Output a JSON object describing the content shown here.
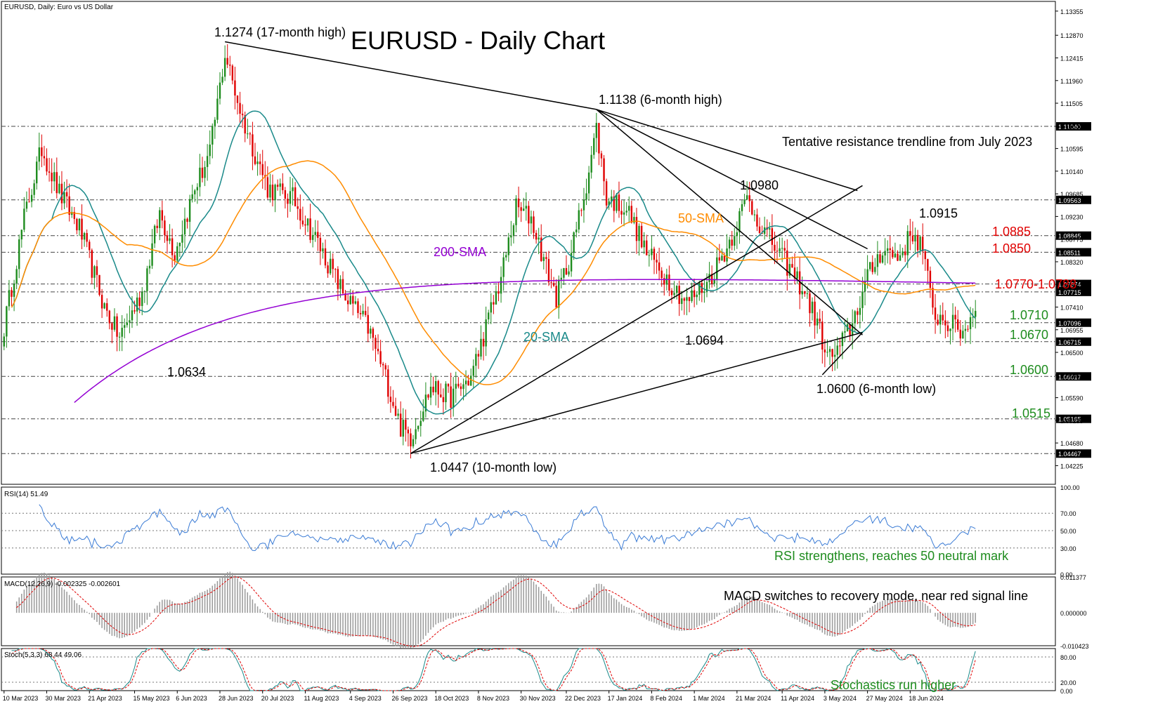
{
  "window": {
    "symbol_info": "EURUSD, Daily:  Euro vs US Dollar"
  },
  "colors": {
    "bull": "#1e8c1e",
    "bear": "#e00000",
    "sma20": "#1a8a8a",
    "sma50": "#ff8c00",
    "sma200": "#9400d3",
    "rsi": "#3a7bd5",
    "green_label": "#1e8c1e",
    "red_label": "#e00000",
    "grid": "#555555"
  },
  "chart_data": {
    "type": "line",
    "title": "EURUSD - Daily Chart",
    "ylim": [
      1.0385,
      1.1355
    ],
    "x_ticks": [
      "10 Mar 2023",
      "30 Mar 2023",
      "21 Apr 2023",
      "15 May 2023",
      "6 Jun 2023",
      "28 Jun 2023",
      "20 Jul 2023",
      "11 Aug 2023",
      "4 Sep 2023",
      "26 Sep 2023",
      "18 Oct 2023",
      "8 Nov 2023",
      "30 Nov 2023",
      "22 Dec 2023",
      "17 Jan 2024",
      "8 Feb 2024",
      "1 Mar 2024",
      "21 Mar 2024",
      "11 Apr 2024",
      "3 May 2024",
      "27 May 2024",
      "18 Jun 2024"
    ],
    "price_ticks": [
      "1.13355",
      "1.12870",
      "1.12415",
      "1.11960",
      "1.11505",
      "1.11040",
      "1.10595",
      "1.10140",
      "1.09685",
      "1.09230",
      "1.08775",
      "1.08320",
      "1.07865",
      "1.07410",
      "1.06955",
      "1.06500",
      "1.06045",
      "1.05590",
      "1.05135",
      "1.04680",
      "1.04225"
    ],
    "highlighted_levels": [
      {
        "label": "1.11040",
        "value": 1.1104
      },
      {
        "label": "1.09563",
        "value": 1.09563
      },
      {
        "label": "1.08845",
        "value": 1.08845
      },
      {
        "label": "1.08511",
        "value": 1.08511
      },
      {
        "label": "1.07874",
        "value": 1.07874
      },
      {
        "label": "1.07715",
        "value": 1.07715
      },
      {
        "label": "1.07096",
        "value": 1.07096
      },
      {
        "label": "1.06715",
        "value": 1.06715
      },
      {
        "label": "1.06017",
        "value": 1.06017
      },
      {
        "label": "1.05165",
        "value": 1.05165
      },
      {
        "label": "1.04467",
        "value": 1.04467
      }
    ],
    "price_anchors": [
      [
        0,
        1.07
      ],
      [
        8,
        1.092
      ],
      [
        15,
        1.106
      ],
      [
        22,
        1.097
      ],
      [
        30,
        1.09
      ],
      [
        40,
        1.074
      ],
      [
        46,
        1.068
      ],
      [
        55,
        1.077
      ],
      [
        62,
        1.093
      ],
      [
        68,
        1.085
      ],
      [
        76,
        1.098
      ],
      [
        82,
        1.105
      ],
      [
        88,
        1.125
      ],
      [
        95,
        1.112
      ],
      [
        105,
        1.098
      ],
      [
        115,
        1.096
      ],
      [
        125,
        1.087
      ],
      [
        135,
        1.077
      ],
      [
        145,
        1.07
      ],
      [
        152,
        1.06
      ],
      [
        158,
        1.05
      ],
      [
        162,
        1.048
      ],
      [
        170,
        1.058
      ],
      [
        178,
        1.056
      ],
      [
        186,
        1.06
      ],
      [
        192,
        1.07
      ],
      [
        198,
        1.08
      ],
      [
        204,
        1.094
      ],
      [
        210,
        1.092
      ],
      [
        216,
        1.082
      ],
      [
        220,
        1.076
      ],
      [
        226,
        1.085
      ],
      [
        232,
        1.099
      ],
      [
        236,
        1.11
      ],
      [
        240,
        1.096
      ],
      [
        248,
        1.094
      ],
      [
        256,
        1.085
      ],
      [
        264,
        1.08
      ],
      [
        272,
        1.075
      ],
      [
        280,
        1.079
      ],
      [
        288,
        1.086
      ],
      [
        296,
        1.096
      ],
      [
        302,
        1.09
      ],
      [
        310,
        1.084
      ],
      [
        318,
        1.078
      ],
      [
        324,
        1.071
      ],
      [
        328,
        1.064
      ],
      [
        332,
        1.065
      ],
      [
        338,
        1.071
      ],
      [
        344,
        1.08
      ],
      [
        350,
        1.086
      ],
      [
        356,
        1.084
      ],
      [
        362,
        1.089
      ],
      [
        366,
        1.086
      ],
      [
        370,
        1.073
      ],
      [
        376,
        1.071
      ],
      [
        382,
        1.069
      ],
      [
        386,
        1.073
      ]
    ],
    "rsi": {
      "label": "RSI(14) 51.49",
      "ticks": [
        "100.00",
        "70.00",
        "50.00",
        "30.00",
        "0.00"
      ],
      "last": 51.49
    },
    "macd": {
      "label": "MACD(12,26,9) -0.002325 -0.002601",
      "ticks": [
        "0.011377",
        "0.000000",
        "-0.010423"
      ]
    },
    "stoch": {
      "label": "Stoch(5,3,3) 68.44 49.06",
      "ticks": [
        "80.00",
        "20.00",
        "0.00"
      ]
    },
    "annotations": [
      {
        "text": "1.1274 (17-month high)"
      },
      {
        "text": "1.1138 (6-month high)"
      },
      {
        "text": "Tentative resistance trendline from July 2023"
      },
      {
        "text": "1.0980"
      },
      {
        "text": "1.0915"
      },
      {
        "text": "50-SMA"
      },
      {
        "text": "200-SMA"
      },
      {
        "text": "20-SMA"
      },
      {
        "text": "1.0694"
      },
      {
        "text": "1.0634"
      },
      {
        "text": "1.0600 (6-month low)"
      },
      {
        "text": "1.0447 (10-month low)"
      },
      {
        "text": "1.0885"
      },
      {
        "text": "1.0850"
      },
      {
        "text": "1.0770-1.0788"
      },
      {
        "text": "1.0710"
      },
      {
        "text": "1.0670"
      },
      {
        "text": "1.0600"
      },
      {
        "text": "1.0515"
      },
      {
        "text": "RSI strengthens, reaches 50 neutral mark"
      },
      {
        "text": "MACD switches to recovery mode, near red signal line"
      },
      {
        "text": "Stochastics run higher"
      }
    ]
  }
}
